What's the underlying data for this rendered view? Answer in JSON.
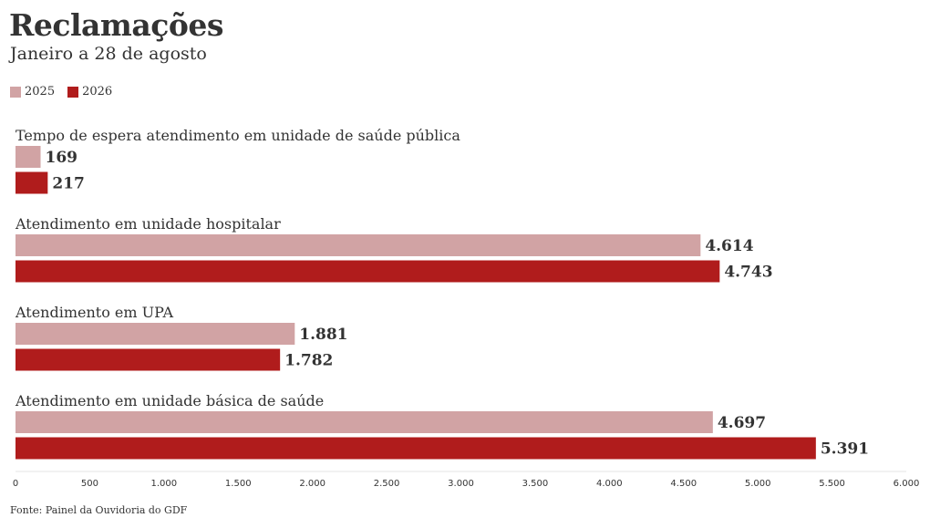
{
  "header": {
    "title": "Reclamações",
    "subtitle": "Janeiro a 28 de agosto"
  },
  "legend": [
    {
      "label": "2025",
      "color": "#d1a3a4"
    },
    {
      "label": "2026",
      "color": "#b01c1c"
    }
  ],
  "chart_data": {
    "type": "bar",
    "orientation": "horizontal",
    "categories": [
      "Tempo de espera atendimento em unidade de saúde pública",
      "Atendimento em unidade hospitalar",
      "Atendimento em UPA",
      "Atendimento em unidade básica de saúde"
    ],
    "series": [
      {
        "name": "2025",
        "color": "#d1a3a4",
        "values": [
          169,
          4614,
          1881,
          4697
        ],
        "labels": [
          "169",
          "4.614",
          "1.881",
          "4.697"
        ]
      },
      {
        "name": "2026",
        "color": "#b01c1c",
        "values": [
          217,
          4743,
          1782,
          5391
        ],
        "labels": [
          "217",
          "4.743",
          "1.782",
          "5.391"
        ]
      }
    ],
    "xlim": [
      0,
      6000
    ],
    "xticks": [
      0,
      500,
      1000,
      1500,
      2000,
      2500,
      3000,
      3500,
      4000,
      4500,
      5000,
      5500,
      6000
    ],
    "xtick_labels": [
      "0",
      "500",
      "1.000",
      "1.500",
      "2.000",
      "2.500",
      "3.000",
      "3.500",
      "4.000",
      "4.500",
      "5.000",
      "5.500",
      "6.000"
    ],
    "legend_position": "top-left",
    "grid": false
  },
  "footer": {
    "source": "Fonte: Painel da Ouvidoria do GDF"
  }
}
